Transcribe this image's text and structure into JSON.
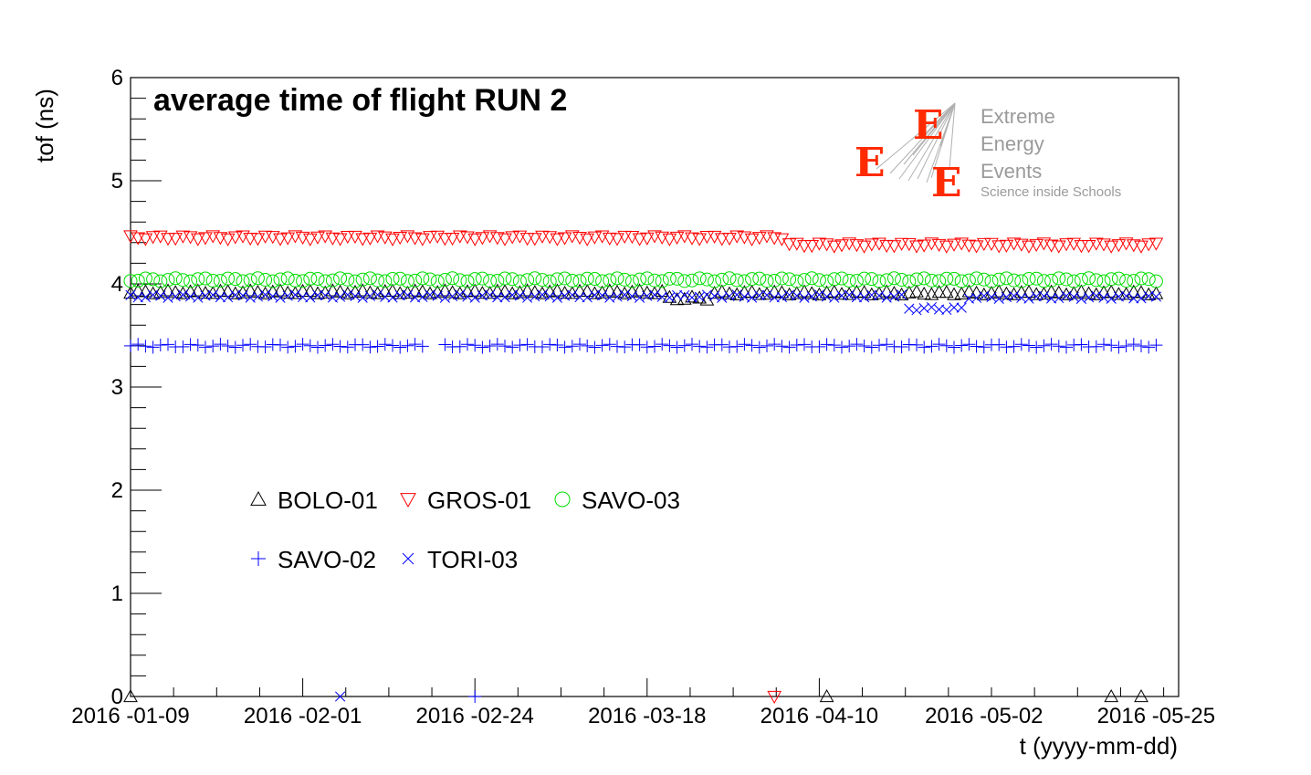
{
  "chart_data": {
    "type": "scatter",
    "title": "average time of flight RUN 2",
    "xlabel": "t (yyyy-mm-dd)",
    "ylabel": "tof (ns)",
    "xlim": [
      "2016-01-09",
      "2016-05-28"
    ],
    "ylim": [
      0,
      6
    ],
    "x_ticks": [
      "2016 -01-09",
      "2016 -02-01",
      "2016 -02-24",
      "2016 -03-18",
      "2016 -04-10",
      "2016 -05-02",
      "2016 -05-25"
    ],
    "x_tick_dates": [
      "2016-01-09",
      "2016-02-01",
      "2016-02-24",
      "2016-03-18",
      "2016-04-10",
      "2016-05-02",
      "2016-05-25"
    ],
    "y_ticks": [
      "0",
      "1",
      "2",
      "3",
      "4",
      "5",
      "6"
    ],
    "date_range": {
      "start": "2016-01-09",
      "end": "2016-05-25"
    },
    "legend_position": "bottom-left",
    "series": [
      {
        "name": "BOLO-01",
        "marker": "triangle-up",
        "color": "#000000",
        "level": 3.92,
        "segments": [
          {
            "from": "2016-01-09",
            "to": "2016-03-20",
            "y": 3.92
          },
          {
            "from": "2016-03-20",
            "to": "2016-03-26",
            "y": 3.86
          },
          {
            "from": "2016-03-26",
            "to": "2016-05-25",
            "y": 3.91
          }
        ],
        "zero_dates": [
          "2016-01-09",
          "2016-04-11",
          "2016-05-19",
          "2016-05-23"
        ]
      },
      {
        "name": "GROS-01",
        "marker": "triangle-down",
        "color": "#ff0000",
        "level": 4.45,
        "segments": [
          {
            "from": "2016-01-09",
            "to": "2016-04-05",
            "y": 4.45
          },
          {
            "from": "2016-04-05",
            "to": "2016-05-25",
            "y": 4.38
          }
        ],
        "zero_dates": [
          "2016-04-04"
        ]
      },
      {
        "name": "SAVO-03",
        "marker": "circle",
        "color": "#00dd00",
        "level": 4.04,
        "segments": [
          {
            "from": "2016-01-09",
            "to": "2016-05-25",
            "y": 4.04
          }
        ],
        "zero_dates": []
      },
      {
        "name": "SAVO-02",
        "marker": "plus",
        "color": "#0000ff",
        "level": 3.4,
        "segments": [
          {
            "from": "2016-01-09",
            "to": "2016-05-25",
            "y": 3.4
          }
        ],
        "zero_dates": [
          "2016-02-24"
        ]
      },
      {
        "name": "TORI-03",
        "marker": "cross",
        "color": "#0000ff",
        "level": 3.88,
        "segments": [
          {
            "from": "2016-01-09",
            "to": "2016-04-21",
            "y": 3.88
          },
          {
            "from": "2016-04-21",
            "to": "2016-04-29",
            "y": 3.76
          },
          {
            "from": "2016-04-29",
            "to": "2016-05-25",
            "y": 3.87
          }
        ],
        "zero_dates": [
          "2016-02-06"
        ]
      }
    ]
  },
  "logo": {
    "line1": "Extreme",
    "line2": "Energy",
    "line3": "Events",
    "line4": "Science inside Schools",
    "accent_color": "#ff2a00"
  }
}
